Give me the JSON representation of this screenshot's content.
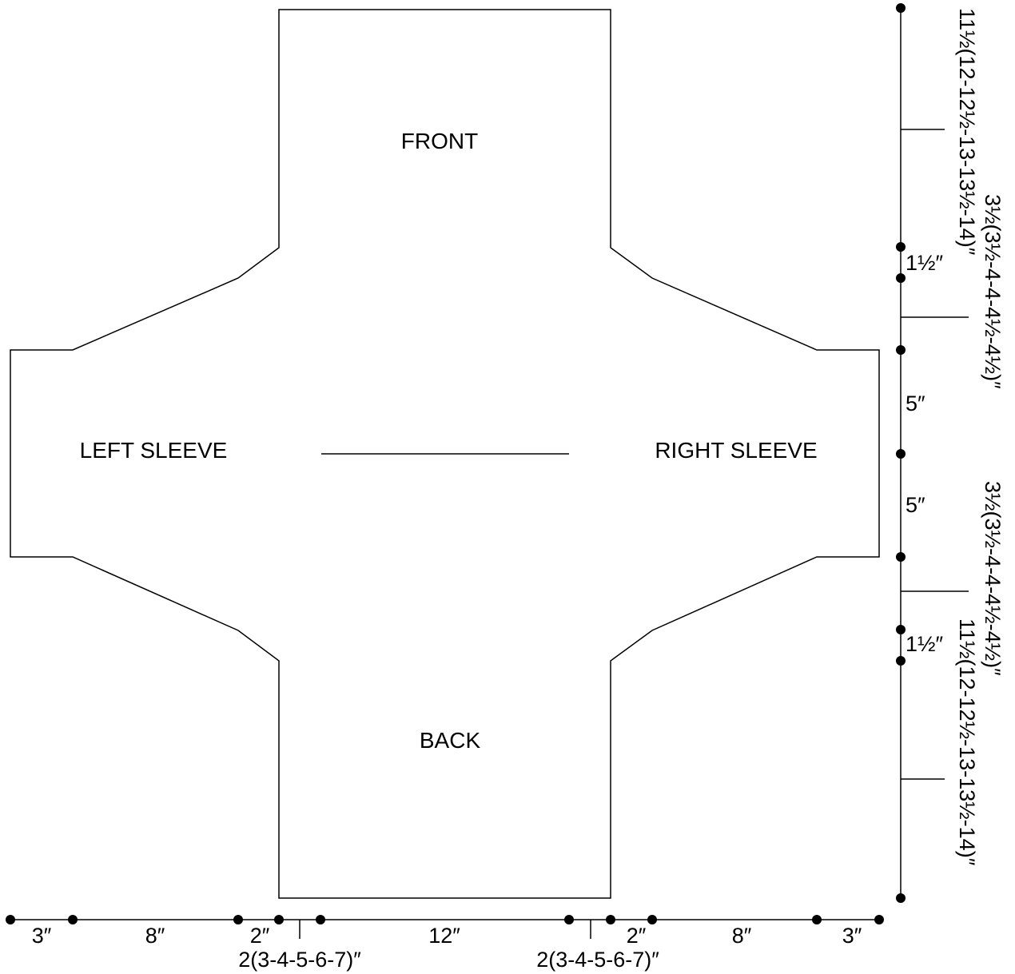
{
  "pieces": {
    "front": "FRONT",
    "back": "BACK",
    "left_sleeve": "LEFT SLEEVE",
    "right_sleeve": "RIGHT SLEEVE"
  },
  "bottom_dims": {
    "cuff_left": "3″",
    "sleeve_left": "8″",
    "shaping_left": "2″",
    "neck_edge_left": "2(3-4-5-6-7)″",
    "center": "12″",
    "neck_edge_right": "2(3-4-5-6-7)″",
    "shaping_right": "2″",
    "sleeve_right": "8″",
    "cuff_right": "3″"
  },
  "right_dims": {
    "front_length": "11½(12-12½-13-13½-14)″",
    "front_shaping": "1½″",
    "front_armhole": "3½(3½-4-4-4½-4½)″",
    "upper_sleeve": "5″",
    "lower_sleeve": "5″",
    "back_armhole": "3½(3½-4-4-4½-4½)″",
    "back_shaping": "1½″",
    "back_length": "11½(12-12½-13-13½-14)″"
  },
  "colors": {
    "line": "#000000",
    "background": "#ffffff"
  }
}
